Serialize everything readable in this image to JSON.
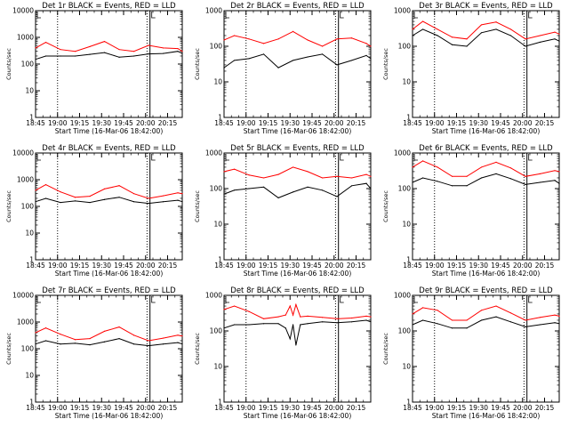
{
  "chart_data": [
    {
      "type": "line",
      "title": "Det 1r BLACK = Events, RED = LLD",
      "xlabel": "Start Time (16-Mar-06 18:42:00)",
      "ylabel": "Counts/sec",
      "yscale": "log",
      "ylim": [
        1,
        10000
      ],
      "yticks": [
        "1",
        "10",
        "100",
        "1000",
        "10000"
      ],
      "xticks": [
        "18:45",
        "19:00",
        "19:15",
        "19:30",
        "19:45",
        "20:00",
        "20:15"
      ],
      "xlim_minutes_after_start": [
        3,
        103
      ],
      "legend": "none",
      "colors": {
        "events": "#000000",
        "lld": "#ff0000"
      },
      "series": [
        {
          "name": "BLACK",
          "x": [
            3,
            10,
            20,
            30,
            40,
            50,
            60,
            70,
            80,
            90,
            100,
            103
          ],
          "values": [
            150,
            200,
            200,
            200,
            230,
            270,
            180,
            200,
            240,
            250,
            300,
            250
          ]
        },
        {
          "name": "RED",
          "x": [
            3,
            10,
            20,
            30,
            40,
            50,
            60,
            70,
            80,
            90,
            100,
            103
          ],
          "values": [
            400,
            650,
            350,
            300,
            450,
            700,
            350,
            300,
            500,
            400,
            380,
            300
          ]
        }
      ]
    },
    {
      "type": "line",
      "title": "Det 2r BLACK = Events, RED = LLD",
      "xlabel": "Start Time (16-Mar-06 18:42:00)",
      "ylabel": "Counts/sec",
      "yscale": "log",
      "ylim": [
        1,
        1000
      ],
      "yticks": [
        "1",
        "10",
        "100",
        "1000"
      ],
      "xticks": [
        "18:45",
        "19:00",
        "19:15",
        "19:30",
        "19:45",
        "20:00",
        "20:15"
      ],
      "xlim_minutes_after_start": [
        3,
        103
      ],
      "legend": "none",
      "colors": {
        "events": "#000000",
        "lld": "#ff0000"
      },
      "series": [
        {
          "name": "BLACK",
          "x": [
            3,
            10,
            20,
            30,
            40,
            50,
            60,
            70,
            80,
            90,
            100,
            103
          ],
          "values": [
            25,
            40,
            45,
            60,
            25,
            40,
            50,
            60,
            30,
            40,
            55,
            45
          ]
        },
        {
          "name": "RED",
          "x": [
            3,
            10,
            20,
            30,
            40,
            50,
            60,
            70,
            80,
            90,
            100,
            103
          ],
          "values": [
            150,
            200,
            160,
            120,
            160,
            260,
            150,
            100,
            160,
            170,
            120,
            100
          ]
        }
      ]
    },
    {
      "type": "line",
      "title": "Det 3r BLACK = Events, RED = LLD",
      "xlabel": "Start Time (16-Mar-06 18:42:00)",
      "ylabel": "Counts/sec",
      "yscale": "log",
      "ylim": [
        1,
        1000
      ],
      "yticks": [
        "1",
        "10",
        "100",
        "1000"
      ],
      "xticks": [
        "18:45",
        "19:00",
        "19:15",
        "19:30",
        "19:45",
        "20:00",
        "20:15"
      ],
      "xlim_minutes_after_start": [
        3,
        103
      ],
      "legend": "none",
      "colors": {
        "events": "#000000",
        "lld": "#ff0000"
      },
      "series": [
        {
          "name": "BLACK",
          "x": [
            3,
            10,
            20,
            30,
            40,
            50,
            60,
            70,
            80,
            90,
            100,
            103
          ],
          "values": [
            200,
            300,
            200,
            110,
            100,
            240,
            300,
            200,
            100,
            130,
            160,
            140
          ]
        },
        {
          "name": "RED",
          "x": [
            3,
            10,
            20,
            30,
            40,
            50,
            60,
            70,
            80,
            90,
            100,
            103
          ],
          "values": [
            300,
            500,
            300,
            180,
            160,
            400,
            480,
            300,
            160,
            200,
            250,
            220
          ]
        }
      ]
    },
    {
      "type": "line",
      "title": "Det 4r BLACK = Events, RED = LLD",
      "xlabel": "Start Time (16-Mar-06 18:42:00)",
      "ylabel": "Counts/sec",
      "yscale": "log",
      "ylim": [
        1,
        10000
      ],
      "yticks": [
        "1",
        "10",
        "100",
        "1000",
        "10000"
      ],
      "xticks": [
        "18:45",
        "19:00",
        "19:15",
        "19:30",
        "19:45",
        "20:00",
        "20:15"
      ],
      "xlim_minutes_after_start": [
        3,
        103
      ],
      "legend": "none",
      "colors": {
        "events": "#000000",
        "lld": "#ff0000"
      },
      "series": [
        {
          "name": "BLACK",
          "x": [
            3,
            10,
            20,
            30,
            40,
            50,
            60,
            70,
            80,
            90,
            100,
            103
          ],
          "values": [
            150,
            200,
            140,
            160,
            140,
            180,
            220,
            150,
            130,
            150,
            170,
            150
          ]
        },
        {
          "name": "RED",
          "x": [
            3,
            10,
            20,
            30,
            40,
            50,
            60,
            70,
            80,
            90,
            100,
            103
          ],
          "values": [
            400,
            650,
            350,
            220,
            240,
            450,
            600,
            300,
            200,
            250,
            320,
            300
          ]
        }
      ]
    },
    {
      "type": "line",
      "title": "Det 5r BLACK = Events, RED = LLD",
      "xlabel": "Start Time (16-Mar-06 18:42:00)",
      "ylabel": "Counts/sec",
      "yscale": "log",
      "ylim": [
        1,
        1000
      ],
      "yticks": [
        "1",
        "10",
        "100",
        "1000"
      ],
      "xticks": [
        "18:45",
        "19:00",
        "19:15",
        "19:30",
        "19:45",
        "20:00",
        "20:15"
      ],
      "xlim_minutes_after_start": [
        3,
        103
      ],
      "legend": "none",
      "colors": {
        "events": "#000000",
        "lld": "#ff0000"
      },
      "series": [
        {
          "name": "BLACK",
          "x": [
            3,
            10,
            20,
            30,
            40,
            50,
            60,
            70,
            80,
            90,
            100,
            103
          ],
          "values": [
            70,
            90,
            100,
            110,
            55,
            80,
            110,
            90,
            60,
            120,
            140,
            100
          ]
        },
        {
          "name": "RED",
          "x": [
            3,
            10,
            20,
            30,
            40,
            50,
            60,
            70,
            80,
            90,
            100,
            103
          ],
          "values": [
            300,
            350,
            240,
            200,
            250,
            400,
            300,
            200,
            220,
            200,
            250,
            220
          ]
        }
      ]
    },
    {
      "type": "line",
      "title": "Det 6r BLACK = Events, RED = LLD",
      "xlabel": "Start Time (16-Mar-06 18:42:00)",
      "ylabel": "Counts/sec",
      "yscale": "log",
      "ylim": [
        1,
        1000
      ],
      "yticks": [
        "1",
        "10",
        "100",
        "1000"
      ],
      "xticks": [
        "18:45",
        "19:00",
        "19:15",
        "19:30",
        "19:45",
        "20:00",
        "20:15"
      ],
      "xlim_minutes_after_start": [
        3,
        103
      ],
      "legend": "none",
      "colors": {
        "events": "#000000",
        "lld": "#ff0000"
      },
      "series": [
        {
          "name": "BLACK",
          "x": [
            3,
            10,
            20,
            30,
            40,
            50,
            60,
            70,
            80,
            90,
            100,
            103
          ],
          "values": [
            150,
            200,
            160,
            120,
            120,
            200,
            260,
            190,
            130,
            150,
            170,
            140
          ]
        },
        {
          "name": "RED",
          "x": [
            3,
            10,
            20,
            30,
            40,
            50,
            60,
            70,
            80,
            90,
            100,
            103
          ],
          "values": [
            400,
            600,
            400,
            220,
            220,
            400,
            550,
            380,
            220,
            260,
            320,
            300
          ]
        }
      ]
    },
    {
      "type": "line",
      "title": "Det 7r BLACK = Events, RED = LLD",
      "xlabel": "Start Time (16-Mar-06 18:42:00)",
      "ylabel": "Counts/sec",
      "yscale": "log",
      "ylim": [
        1,
        10000
      ],
      "yticks": [
        "1",
        "10",
        "100",
        "1000",
        "10000"
      ],
      "xticks": [
        "18:45",
        "19:00",
        "19:15",
        "19:30",
        "19:45",
        "20:00",
        "20:15"
      ],
      "xlim_minutes_after_start": [
        3,
        103
      ],
      "legend": "none",
      "colors": {
        "events": "#000000",
        "lld": "#ff0000"
      },
      "series": [
        {
          "name": "BLACK",
          "x": [
            3,
            10,
            20,
            30,
            40,
            50,
            60,
            70,
            80,
            90,
            100,
            103
          ],
          "values": [
            150,
            200,
            150,
            160,
            140,
            180,
            240,
            150,
            130,
            150,
            170,
            150
          ]
        },
        {
          "name": "RED",
          "x": [
            3,
            10,
            20,
            30,
            40,
            50,
            60,
            70,
            80,
            90,
            100,
            103
          ],
          "values": [
            400,
            600,
            350,
            220,
            240,
            450,
            650,
            320,
            200,
            250,
            320,
            300
          ]
        }
      ]
    },
    {
      "type": "line",
      "title": "Det 8r BLACK = Events, RED = LLD",
      "xlabel": "Start Time (16-Mar-06 18:42:00)",
      "ylabel": "Counts/sec",
      "yscale": "log",
      "ylim": [
        1,
        1000
      ],
      "yticks": [
        "1",
        "10",
        "100",
        "1000"
      ],
      "xticks": [
        "18:45",
        "19:00",
        "19:15",
        "19:30",
        "19:45",
        "20:00",
        "20:15"
      ],
      "xlim_minutes_after_start": [
        3,
        103
      ],
      "legend": "none",
      "colors": {
        "events": "#000000",
        "lld": "#ff0000"
      },
      "series": [
        {
          "name": "BLACK",
          "x": [
            3,
            10,
            20,
            30,
            40,
            45,
            48,
            50,
            52,
            55,
            60,
            70,
            80,
            90,
            100,
            103
          ],
          "values": [
            120,
            150,
            150,
            160,
            160,
            120,
            60,
            150,
            40,
            150,
            160,
            180,
            170,
            180,
            200,
            180
          ]
        },
        {
          "name": "RED",
          "x": [
            3,
            10,
            20,
            30,
            40,
            45,
            48,
            50,
            52,
            55,
            60,
            70,
            80,
            90,
            100,
            103
          ],
          "values": [
            400,
            500,
            350,
            220,
            250,
            280,
            500,
            280,
            550,
            250,
            260,
            240,
            220,
            230,
            260,
            250
          ]
        }
      ]
    },
    {
      "type": "line",
      "title": "Det 9r BLACK = Events, RED = LLD",
      "xlabel": "Start Time (16-Mar-06 18:42:00)",
      "ylabel": "Counts/sec",
      "yscale": "log",
      "ylim": [
        1,
        1000
      ],
      "yticks": [
        "1",
        "10",
        "100",
        "1000"
      ],
      "xticks": [
        "18:45",
        "19:00",
        "19:15",
        "19:30",
        "19:45",
        "20:00",
        "20:15"
      ],
      "xlim_minutes_after_start": [
        3,
        103
      ],
      "legend": "none",
      "colors": {
        "events": "#000000",
        "lld": "#ff0000"
      },
      "series": [
        {
          "name": "BLACK",
          "x": [
            3,
            10,
            20,
            30,
            40,
            50,
            60,
            70,
            80,
            90,
            100,
            103
          ],
          "values": [
            150,
            200,
            160,
            120,
            120,
            200,
            250,
            180,
            130,
            150,
            170,
            160
          ]
        },
        {
          "name": "RED",
          "x": [
            3,
            10,
            20,
            30,
            40,
            50,
            60,
            70,
            80,
            90,
            100,
            103
          ],
          "values": [
            300,
            450,
            380,
            200,
            200,
            380,
            500,
            320,
            200,
            240,
            280,
            260
          ]
        }
      ]
    }
  ]
}
